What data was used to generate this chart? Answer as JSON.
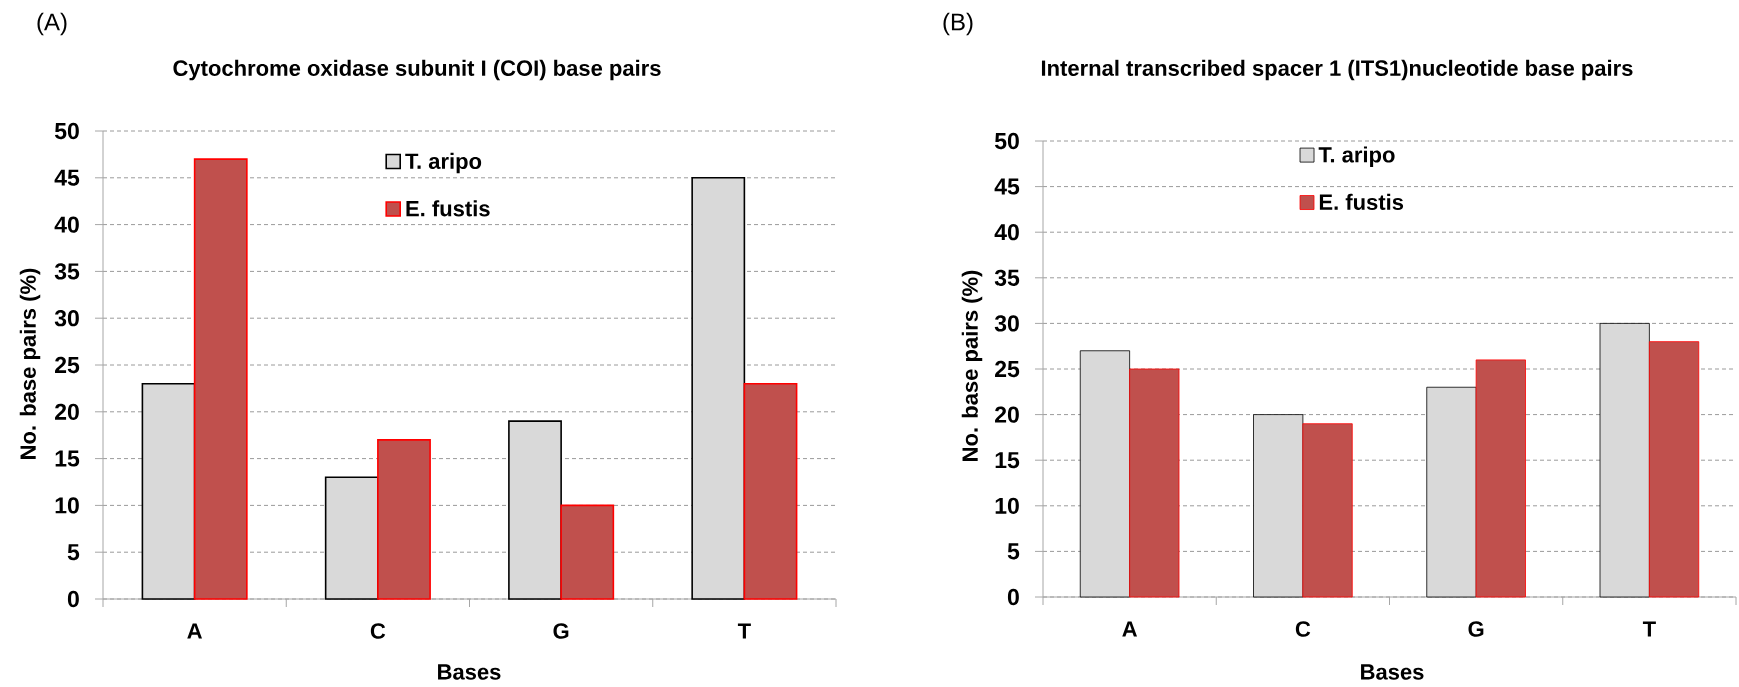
{
  "chart_data": [
    {
      "type": "bar",
      "title": "Cytochrome oxidase subunit I (COI) base pairs",
      "xlabel": "Bases",
      "ylabel": "No. base pairs (%)",
      "annotations": [
        "(A)"
      ],
      "categories": [
        "A",
        "C",
        "G",
        "T"
      ],
      "series": [
        {
          "name": "T. aripo",
          "color": "#d9d9d9",
          "values": [
            23,
            13,
            19,
            45
          ]
        },
        {
          "name": "E. fustis",
          "color": "#c0504d",
          "values": [
            47,
            17,
            10,
            23
          ]
        }
      ],
      "ylim": [
        0,
        50
      ],
      "yticks": [
        0,
        5,
        10,
        15,
        20,
        25,
        30,
        35,
        40,
        45,
        50
      ],
      "grid": "y",
      "legend": "top"
    },
    {
      "type": "bar",
      "title": "Internal transcribed spacer 1 (ITS1)nucleotide base pairs",
      "xlabel": "Bases",
      "ylabel": "No. base pairs (%)",
      "annotations": [
        "(B)"
      ],
      "categories": [
        "A",
        "C",
        "G",
        "T"
      ],
      "series": [
        {
          "name": "T. aripo",
          "color": "#d9d9d9",
          "values": [
            27,
            20,
            23,
            30
          ]
        },
        {
          "name": "E. fustis",
          "color": "#c0504d",
          "values": [
            25,
            19,
            26,
            28
          ]
        }
      ],
      "ylim": [
        0,
        50
      ],
      "yticks": [
        0,
        5,
        10,
        15,
        20,
        25,
        30,
        35,
        40,
        45,
        50
      ],
      "grid": "y",
      "legend": "top"
    }
  ]
}
